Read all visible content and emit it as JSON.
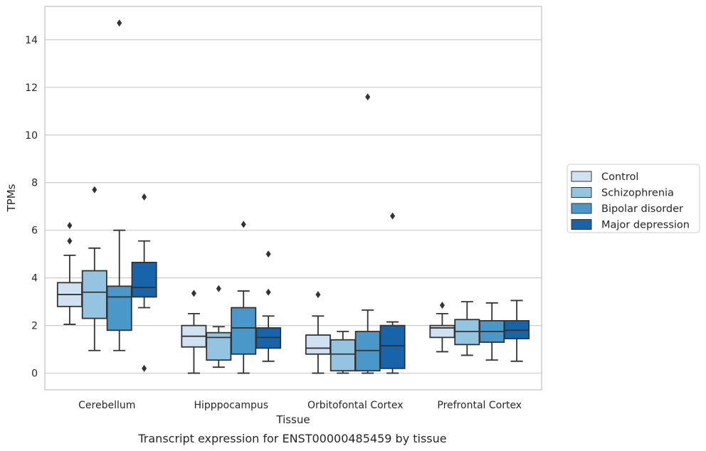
{
  "chart_data": {
    "type": "boxplot",
    "xlabel": "Tissue",
    "ylabel": "TPMs",
    "caption": "Transcript expression for ENST00000485459 by tissue",
    "categories": [
      "Cerebellum",
      "Hipppocampus",
      "Orbitofontal Cortex",
      "Prefrontal Cortex"
    ],
    "ylim": [
      -0.7,
      15.4
    ],
    "yticks": [
      0,
      2,
      4,
      6,
      8,
      10,
      12,
      14
    ],
    "grid": "horizontal",
    "legend_position": "right",
    "series": [
      {
        "name": "Control",
        "color": "#d0e1f2",
        "boxes": [
          {
            "whislo": 2.05,
            "q1": 2.8,
            "med": 3.3,
            "q3": 3.8,
            "whishi": 4.95,
            "fliers": [
              5.55,
              6.2
            ]
          },
          {
            "whislo": 0.0,
            "q1": 1.1,
            "med": 1.55,
            "q3": 2.0,
            "whishi": 2.5,
            "fliers": [
              3.35
            ]
          },
          {
            "whislo": 0.0,
            "q1": 0.8,
            "med": 1.05,
            "q3": 1.6,
            "whishi": 2.4,
            "fliers": [
              3.3
            ]
          },
          {
            "whislo": 0.9,
            "q1": 1.5,
            "med": 1.9,
            "q3": 2.0,
            "whishi": 2.5,
            "fliers": [
              2.85
            ]
          }
        ]
      },
      {
        "name": "Schizophrenia",
        "color": "#94c4df",
        "boxes": [
          {
            "whislo": 0.95,
            "q1": 2.3,
            "med": 3.4,
            "q3": 4.3,
            "whishi": 5.25,
            "fliers": [
              7.7
            ]
          },
          {
            "whislo": 0.25,
            "q1": 0.55,
            "med": 1.5,
            "q3": 1.7,
            "whishi": 1.95,
            "fliers": [
              3.55
            ]
          },
          {
            "whislo": 0.0,
            "q1": 0.1,
            "med": 0.8,
            "q3": 1.4,
            "whishi": 1.75,
            "fliers": []
          },
          {
            "whislo": 0.75,
            "q1": 1.2,
            "med": 1.75,
            "q3": 2.25,
            "whishi": 3.0,
            "fliers": []
          }
        ]
      },
      {
        "name": "Bipolar disorder",
        "color": "#4a98c9",
        "boxes": [
          {
            "whislo": 0.95,
            "q1": 1.8,
            "med": 3.2,
            "q3": 3.65,
            "whishi": 6.0,
            "fliers": [
              14.7
            ]
          },
          {
            "whislo": 0.0,
            "q1": 0.8,
            "med": 1.9,
            "q3": 2.75,
            "whishi": 3.45,
            "fliers": [
              6.25
            ]
          },
          {
            "whislo": 0.0,
            "q1": 0.1,
            "med": 0.95,
            "q3": 1.75,
            "whishi": 2.65,
            "fliers": [
              11.6
            ]
          },
          {
            "whislo": 0.55,
            "q1": 1.3,
            "med": 1.75,
            "q3": 2.2,
            "whishi": 2.95,
            "fliers": []
          }
        ]
      },
      {
        "name": "Major depression",
        "color": "#1764ab",
        "boxes": [
          {
            "whislo": 2.75,
            "q1": 3.2,
            "med": 3.6,
            "q3": 4.65,
            "whishi": 5.55,
            "fliers": [
              7.4,
              0.2
            ]
          },
          {
            "whislo": 0.5,
            "q1": 1.05,
            "med": 1.5,
            "q3": 1.9,
            "whishi": 2.4,
            "fliers": [
              3.4,
              5.0
            ]
          },
          {
            "whislo": 0.0,
            "q1": 0.2,
            "med": 1.15,
            "q3": 2.0,
            "whishi": 2.15,
            "fliers": [
              6.6
            ]
          },
          {
            "whislo": 0.5,
            "q1": 1.45,
            "med": 1.8,
            "q3": 2.2,
            "whishi": 3.05,
            "fliers": []
          }
        ]
      }
    ],
    "colors": {
      "box_edge": "#333333",
      "grid": "#cccccc",
      "frame": "#cccccc"
    }
  }
}
